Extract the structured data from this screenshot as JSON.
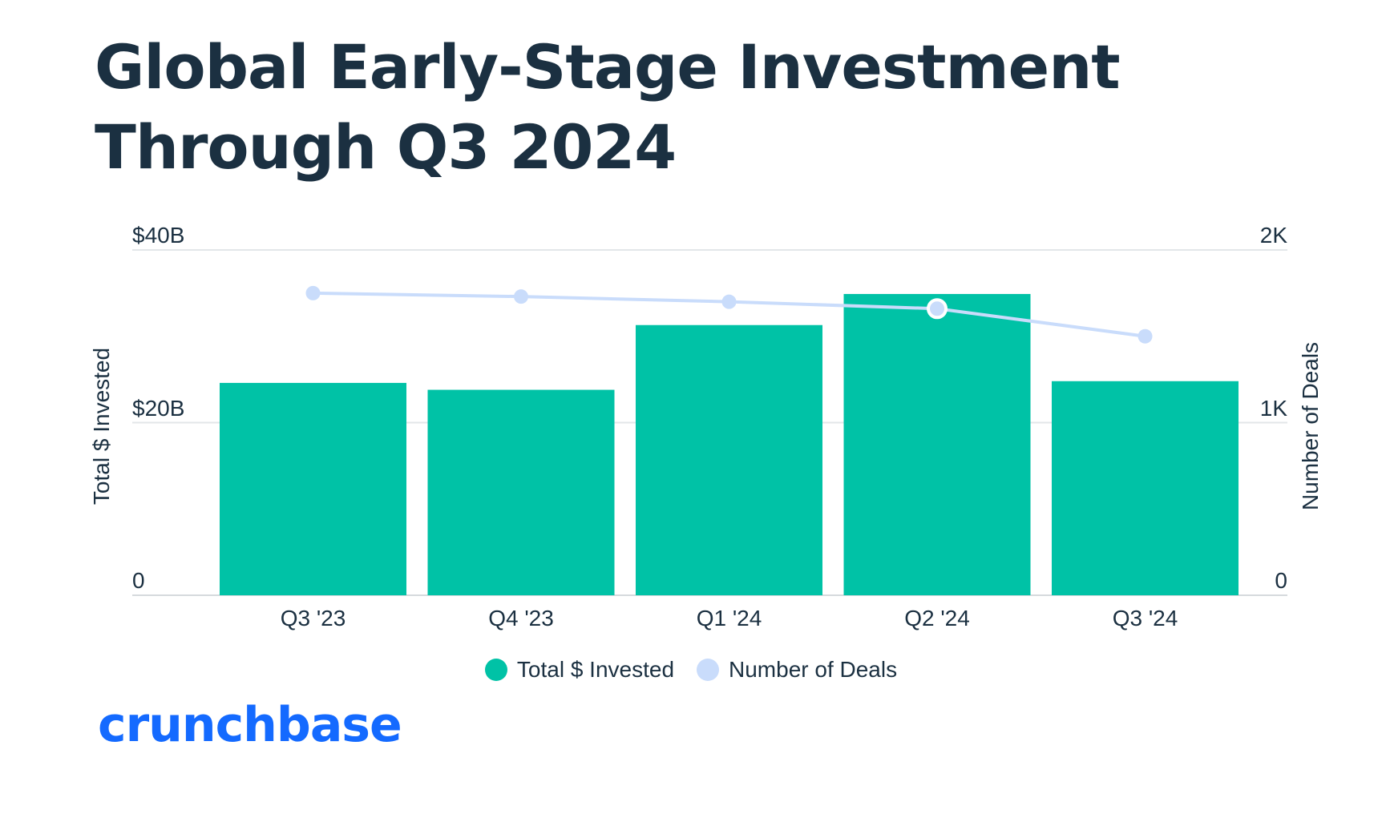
{
  "brand": {
    "name": "crunchbase",
    "color": "#146aff"
  },
  "colors": {
    "bars": "#00c2a6",
    "line": "#c9dcfb",
    "title": "#1b3041",
    "grid": "#e3e6e9"
  },
  "chart_data": {
    "type": "bar",
    "title": "Global Early-Stage Investment Through Q3 2024",
    "categories": [
      "Q3 '23",
      "Q4 '23",
      "Q1 '24",
      "Q2 '24",
      "Q3 '24"
    ],
    "series": [
      {
        "name": "Total $ Invested",
        "type": "bar",
        "axis": "left",
        "values": [
          24.6,
          23.8,
          31.3,
          34.9,
          24.8
        ]
      },
      {
        "name": "Number of Deals",
        "type": "line",
        "axis": "right",
        "values": [
          1750,
          1730,
          1700,
          1660,
          1500
        ],
        "highlight_index": 3
      }
    ],
    "ylabel": "Total $ Invested",
    "y2label": "Number of Deals",
    "ylim": [
      0,
      40
    ],
    "y2lim": [
      0,
      2000
    ],
    "yticks": [
      "0",
      "$20B",
      "$40B"
    ],
    "y2ticks": [
      "0",
      "1K",
      "2K"
    ],
    "grid": true,
    "legend": "bottom-center"
  }
}
